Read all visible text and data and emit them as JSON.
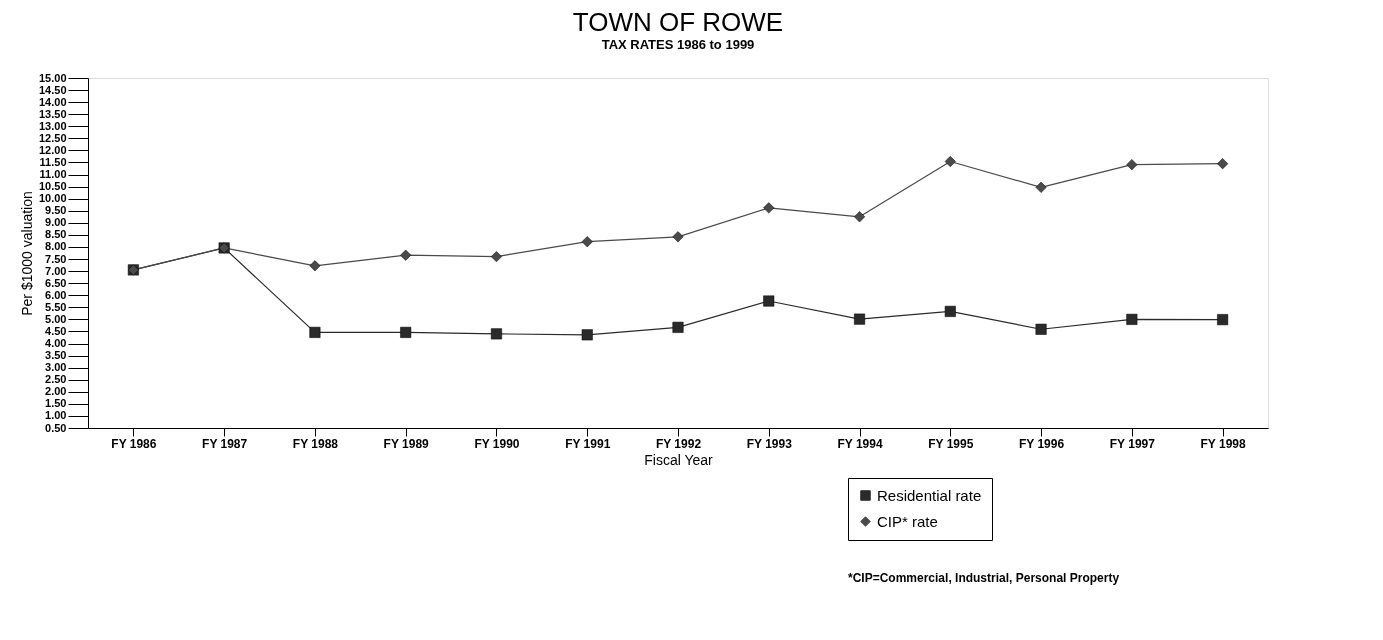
{
  "chart_data": {
    "type": "line",
    "title": "TOWN OF ROWE",
    "subtitle": "TAX RATES 1986 to 1999",
    "xlabel": "Fiscal Year",
    "ylabel": "Per $1000 valuation",
    "categories": [
      "FY 1986",
      "FY 1987",
      "FY 1988",
      "FY 1989",
      "FY 1990",
      "FY 1991",
      "FY 1992",
      "FY 1993",
      "FY 1994",
      "FY 1995",
      "FY 1996",
      "FY 1997",
      "FY 1998"
    ],
    "series": [
      {
        "name": "Residential rate",
        "color": "#2a2a2a",
        "marker": "square",
        "values": [
          7.05,
          7.96,
          4.46,
          4.46,
          4.4,
          4.36,
          4.67,
          5.76,
          5.01,
          5.33,
          4.59,
          5.0,
          4.99
        ]
      },
      {
        "name": "CIP* rate",
        "color": "#4a4a4a",
        "marker": "diamond",
        "values": [
          7.05,
          7.96,
          7.22,
          7.66,
          7.6,
          8.22,
          8.42,
          9.62,
          9.25,
          11.54,
          10.47,
          11.41,
          11.45
        ]
      }
    ],
    "ylim": [
      0.5,
      15
    ],
    "yticks": [
      {
        "value": 0.5,
        "label": "0.50"
      },
      {
        "value": 1,
        "label": "1.00"
      },
      {
        "value": 1.5,
        "label": "1.50"
      },
      {
        "value": 2,
        "label": "2.00"
      },
      {
        "value": 2.5,
        "label": "2.50"
      },
      {
        "value": 3,
        "label": "3.00"
      },
      {
        "value": 3.5,
        "label": "3.50"
      },
      {
        "value": 4,
        "label": "4.00"
      },
      {
        "value": 4.5,
        "label": "4.50"
      },
      {
        "value": 5,
        "label": "5.00"
      },
      {
        "value": 5.5,
        "label": "5.50"
      },
      {
        "value": 6,
        "label": "6.00"
      },
      {
        "value": 6.5,
        "label": "6.50"
      },
      {
        "value": 7,
        "label": "7.00"
      },
      {
        "value": 7.5,
        "label": "7.50"
      },
      {
        "value": 8,
        "label": "8.00"
      },
      {
        "value": 8.5,
        "label": "8.50"
      },
      {
        "value": 9,
        "label": "9.00"
      },
      {
        "value": 9.5,
        "label": "9.50"
      },
      {
        "value": 10,
        "label": "10.00"
      },
      {
        "value": 10.5,
        "label": "10.50"
      },
      {
        "value": 11,
        "label": "11.00"
      },
      {
        "value": 11.5,
        "label": "11.50"
      },
      {
        "value": 12,
        "label": "12.00"
      },
      {
        "value": 12.5,
        "label": "12.50"
      },
      {
        "value": 13,
        "label": "13.00"
      },
      {
        "value": 13.5,
        "label": "13.50"
      },
      {
        "value": 14,
        "label": "14.00"
      },
      {
        "value": 14.5,
        "label": "14.50"
      },
      {
        "value": 15,
        "label": "15.00"
      }
    ],
    "grid": false,
    "legend": "bottom right",
    "annotations": [
      "*CIP=Commercial, Industrial, Personal Property"
    ]
  }
}
